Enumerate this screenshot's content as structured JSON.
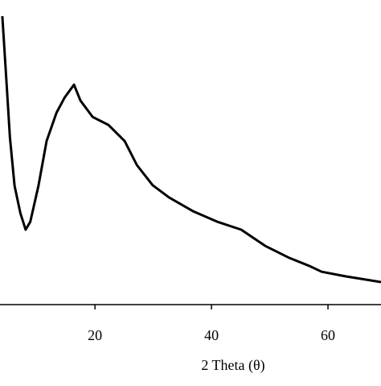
{
  "chart_data": {
    "type": "line",
    "x_label": "2 Theta (θ)",
    "x": [
      4.1,
      4.8,
      5.4,
      6.2,
      7.2,
      8.1,
      8.9,
      10.3,
      11.7,
      13.4,
      14.8,
      16.4,
      17.5,
      19.6,
      22.3,
      25.1,
      27.2,
      29.9,
      32.7,
      36.8,
      41,
      45.1,
      49.2,
      53.4,
      56.8,
      58.9,
      63,
      69.1
    ],
    "series": [
      {
        "color": "#000000",
        "values": [
          94.7,
          73.5,
          55,
          39,
          30,
          24.6,
          27.2,
          39,
          53.7,
          63,
          68,
          72.2,
          67,
          61.6,
          59,
          53.7,
          45.8,
          39.2,
          35.2,
          30.7,
          27.2,
          24.6,
          19.3,
          15.3,
          12.7,
          10.8,
          9.3,
          7.4
        ]
      }
    ],
    "xlim": [
      3.7,
      69.1
    ],
    "xticks": [
      20,
      40,
      60
    ],
    "ylim": [
      0,
      100
    ]
  }
}
